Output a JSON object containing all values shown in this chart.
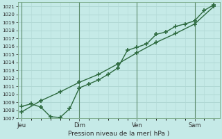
{
  "xlabel": "Pression niveau de la mer( hPa )",
  "bg_color": "#c5eae7",
  "grid_color": "#b0d8d4",
  "line_color": "#2d6a3f",
  "vline_color": "#5a8a6a",
  "ylim": [
    1007,
    1021.5
  ],
  "yticks": [
    1007,
    1008,
    1009,
    1010,
    1011,
    1012,
    1013,
    1014,
    1015,
    1016,
    1017,
    1018,
    1019,
    1020,
    1021
  ],
  "xtick_labels": [
    "Jeu",
    "",
    "Dim",
    "",
    "Ven",
    "",
    "Sam"
  ],
  "xtick_pos": [
    0,
    1.5,
    3,
    4.5,
    6,
    7.5,
    9
  ],
  "xlim": [
    -0.2,
    10.3
  ],
  "line1_x": [
    0.0,
    0.5,
    1.0,
    1.5,
    2.0,
    2.5,
    3.0,
    3.5,
    4.0,
    4.5,
    5.0,
    5.5,
    6.0,
    6.5,
    7.0,
    7.5,
    8.0,
    8.5,
    9.0,
    9.5,
    10.0
  ],
  "line1_y": [
    1008.5,
    1008.8,
    1008.4,
    1007.2,
    1007.1,
    1008.2,
    1010.8,
    1011.3,
    1011.8,
    1012.5,
    1013.3,
    1015.5,
    1015.9,
    1016.3,
    1017.5,
    1017.8,
    1018.5,
    1018.8,
    1019.2,
    1020.5,
    1021.2
  ],
  "line2_x": [
    0.0,
    1.0,
    2.0,
    3.0,
    4.0,
    5.0,
    6.0,
    7.0,
    8.0,
    9.0,
    10.0
  ],
  "line2_y": [
    1007.8,
    1009.2,
    1010.3,
    1011.5,
    1012.5,
    1013.8,
    1015.2,
    1016.5,
    1017.6,
    1018.8,
    1021.0
  ],
  "vline_positions": [
    0,
    3,
    6,
    9
  ],
  "marker_size": 4,
  "line_width": 1.0
}
